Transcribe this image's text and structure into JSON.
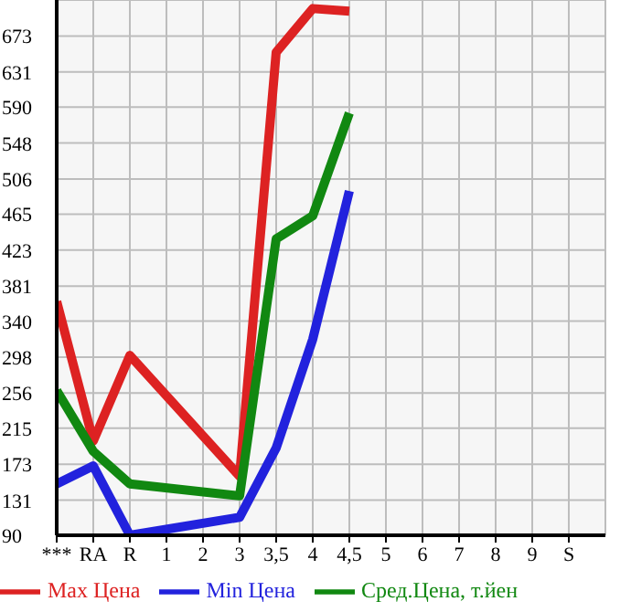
{
  "chart_data": {
    "type": "line",
    "categories": [
      "***",
      "RA",
      "R",
      "1",
      "2",
      "3",
      "3,5",
      "4",
      "4,5",
      "5",
      "6",
      "7",
      "8",
      "9",
      "S"
    ],
    "series": [
      {
        "name": "Max Цена",
        "color": "#dd2222",
        "values": [
          363,
          200,
          300,
          null,
          null,
          159,
          654,
          705,
          702,
          null,
          null,
          null,
          null,
          null,
          null
        ]
      },
      {
        "name": "Min Цена",
        "color": "#2222dd",
        "values": [
          150,
          171,
          90,
          null,
          null,
          111,
          192,
          319,
          492,
          null,
          null,
          null,
          null,
          null,
          null
        ]
      },
      {
        "name": "Сред.Цена, т.йен",
        "color": "#118811",
        "values": [
          259,
          188,
          150,
          null,
          null,
          136,
          436,
          463,
          583,
          null,
          null,
          null,
          null,
          null,
          null
        ]
      }
    ],
    "ylim": [
      90,
      715
    ],
    "yticks": [
      90,
      131,
      173,
      215,
      256,
      298,
      340,
      381,
      423,
      465,
      506,
      548,
      590,
      631,
      673
    ],
    "grid": true,
    "legend": "bottom",
    "marker": "none",
    "line_style": "solid"
  }
}
